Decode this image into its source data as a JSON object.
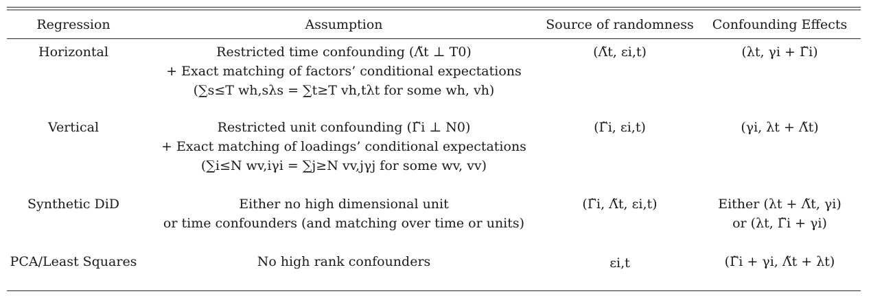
{
  "table": {
    "headers": {
      "regression": "Regression",
      "assumption": "Assumption",
      "source": "Source of randomness",
      "confounding": "Confounding Effects"
    },
    "rows": [
      {
        "regression": "Horizontal",
        "assumption_lines": [
          "Restricted time confounding (Λ̃t ⊥ T0)",
          "+ Exact matching of factors’ conditional expectations",
          "(∑s≤T wh,sλs = ∑t≥T vh,tλt for some wh, vh)"
        ],
        "source": "(Λ̃t, εi,t)",
        "confounding_lines": [
          "(λt, γi + Γ̃i)"
        ]
      },
      {
        "regression": "Vertical",
        "assumption_lines": [
          "Restricted unit confounding (Γ̃i ⊥ N0)",
          "+ Exact matching of loadings’ conditional expectations",
          "(∑i≤N wv,iγi = ∑j≥N vv,jγj for some wv, vv)"
        ],
        "source": "(Γ̃i, εi,t)",
        "confounding_lines": [
          "(γi, λt + Λ̃t)"
        ]
      },
      {
        "regression": "Synthetic DiD",
        "assumption_lines": [
          "Either no high dimensional unit",
          "or time confounders (and matching over time or units)"
        ],
        "source": "(Γ̃i, Λ̃t, εi,t)",
        "confounding_lines": [
          "Either (λt + Λ̃t, γi)",
          "or (λt, Γ̃i + γi)"
        ]
      },
      {
        "regression": "PCA/Least Squares",
        "assumption_lines": [
          "No high rank confounders"
        ],
        "source": "εi,t",
        "confounding_lines": [
          "(Γ̃i + γi, Λ̃t + λt)"
        ]
      }
    ]
  }
}
